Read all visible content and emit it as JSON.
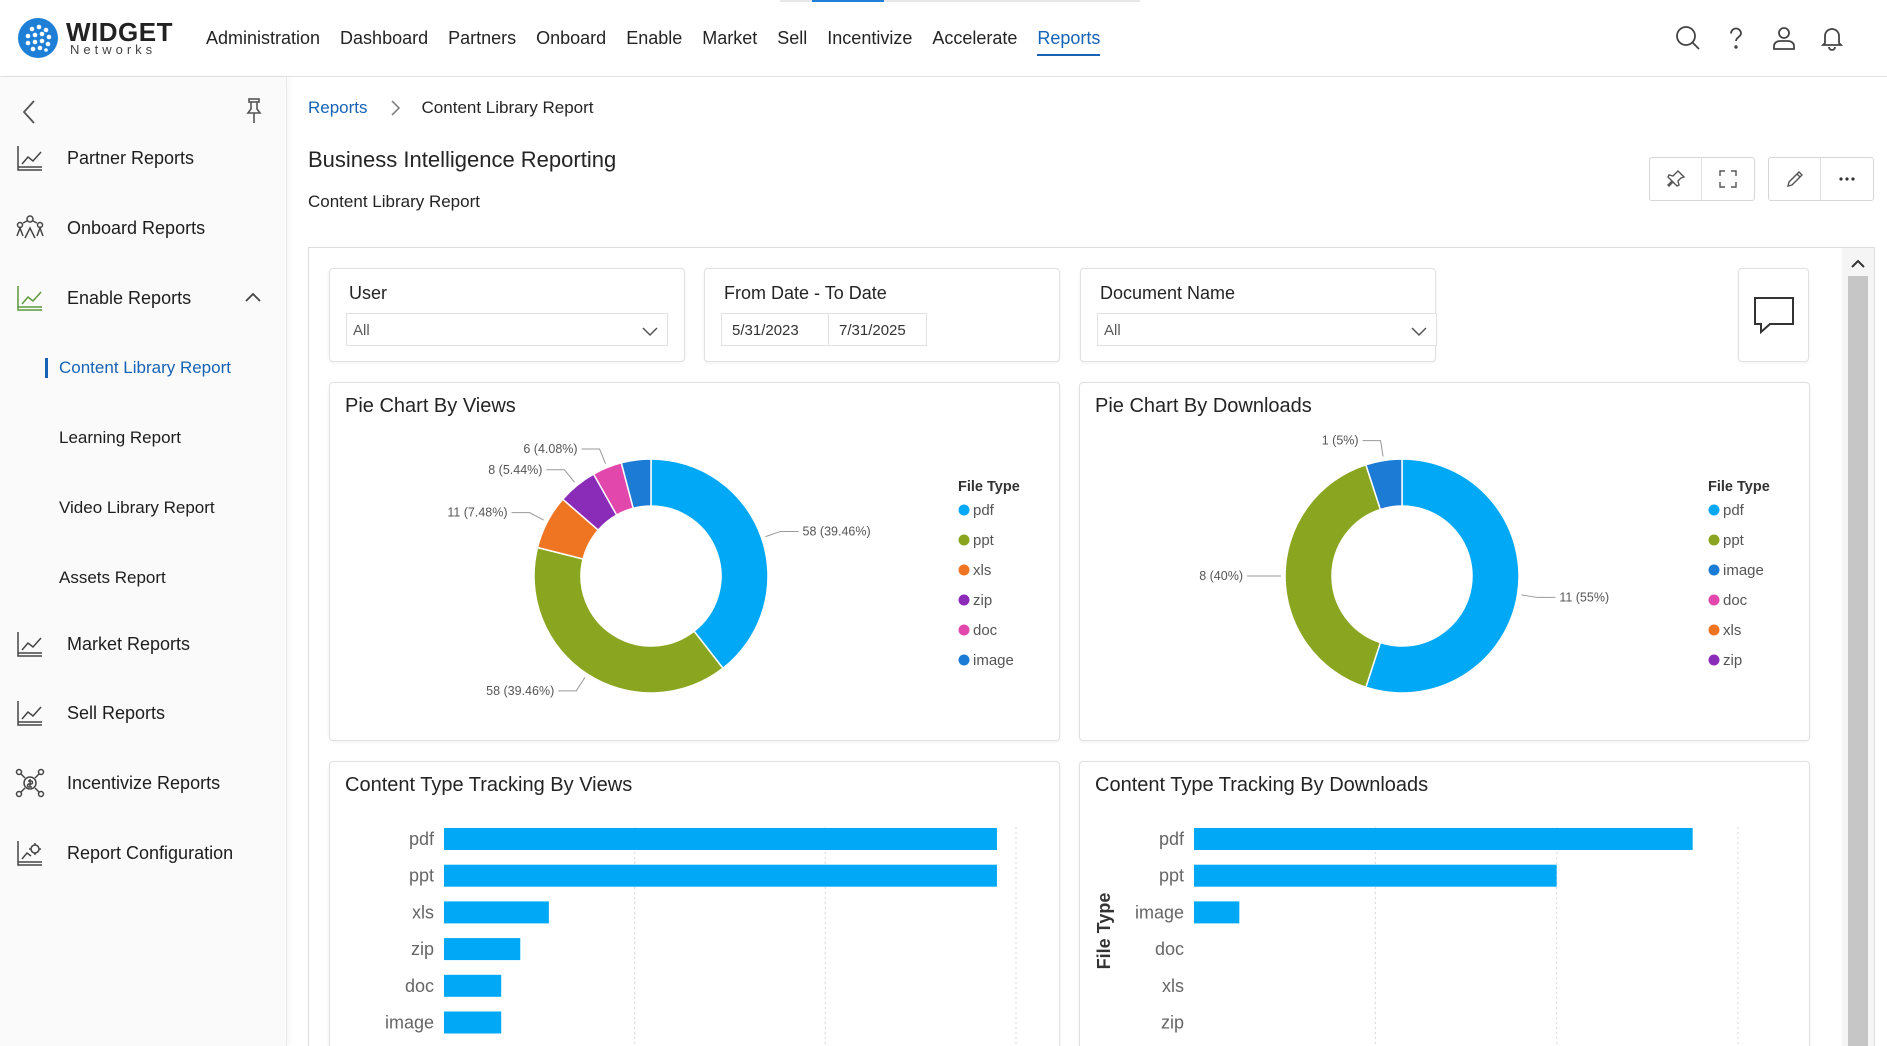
{
  "brand": {
    "title": "WIDGET",
    "subtitle": "Networks"
  },
  "nav": [
    "Administration",
    "Dashboard",
    "Partners",
    "Onboard",
    "Enable",
    "Market",
    "Sell",
    "Incentivize",
    "Accelerate",
    "Reports"
  ],
  "nav_active": "Reports",
  "sidebar": {
    "items": [
      {
        "label": "Partner Reports",
        "icon": "chart-line-icon"
      },
      {
        "label": "Onboard Reports",
        "icon": "people-network-icon"
      },
      {
        "label": "Enable Reports",
        "icon": "chart-line-icon",
        "expanded": true
      },
      {
        "label": "Market Reports",
        "icon": "chart-line-icon"
      },
      {
        "label": "Sell Reports",
        "icon": "chart-line-icon"
      },
      {
        "label": "Incentivize Reports",
        "icon": "money-network-icon"
      },
      {
        "label": "Report Configuration",
        "icon": "chart-gear-icon"
      }
    ],
    "subitems": [
      {
        "label": "Content Library Report",
        "active": true
      },
      {
        "label": "Learning Report"
      },
      {
        "label": "Video Library Report"
      },
      {
        "label": "Assets Report"
      }
    ]
  },
  "breadcrumb": {
    "root": "Reports",
    "current": "Content Library Report"
  },
  "header": {
    "title": "Business Intelligence Reporting",
    "subtitle": "Content Library Report"
  },
  "filters": {
    "user": {
      "label": "User",
      "value": "All"
    },
    "dates": {
      "label": "From Date - To Date",
      "from": "5/31/2023",
      "to": "7/31/2025"
    },
    "document": {
      "label": "Document Name",
      "value": "All"
    }
  },
  "colors": {
    "pdf": "#00a8f5",
    "ppt": "#8aa621",
    "xls": "#f07522",
    "zip": "#8b2cb8",
    "doc": "#e247ac",
    "image": "#1c7bd5",
    "accent": "#1663b6"
  },
  "chart_data": [
    {
      "type": "pie",
      "title": "Pie Chart By Views",
      "legend_title": "File Type",
      "legend": [
        "pdf",
        "ppt",
        "xls",
        "zip",
        "doc",
        "image"
      ],
      "slices": [
        {
          "category": "pdf",
          "value": 58,
          "label": "58 (39.46%)"
        },
        {
          "category": "ppt",
          "value": 58,
          "label": "58 (39.46%)"
        },
        {
          "category": "xls",
          "value": 11,
          "label": "11 (7.48%)"
        },
        {
          "category": "zip",
          "value": 8,
          "label": "8 (5.44%)"
        },
        {
          "category": "doc",
          "value": 6,
          "label": "6 (4.08%)"
        },
        {
          "category": "image",
          "value": 6,
          "label": ""
        }
      ]
    },
    {
      "type": "pie",
      "title": "Pie Chart By Downloads",
      "legend_title": "File Type",
      "legend": [
        "pdf",
        "ppt",
        "image",
        "doc",
        "xls",
        "zip"
      ],
      "slices": [
        {
          "category": "pdf",
          "value": 11,
          "label": "11 (55%)"
        },
        {
          "category": "ppt",
          "value": 8,
          "label": "8 (40%)"
        },
        {
          "category": "image",
          "value": 1,
          "label": "1 (5%)"
        }
      ]
    },
    {
      "type": "bar",
      "orientation": "horizontal",
      "title": "Content Type Tracking By Views",
      "ylabel": "",
      "categories": [
        "pdf",
        "ppt",
        "xls",
        "zip",
        "doc",
        "image"
      ],
      "values": [
        58,
        58,
        11,
        8,
        6,
        6
      ],
      "xlim": [
        0,
        60
      ]
    },
    {
      "type": "bar",
      "orientation": "horizontal",
      "title": "Content Type Tracking By Downloads",
      "ylabel": "File Type",
      "categories": [
        "pdf",
        "ppt",
        "image",
        "doc",
        "xls",
        "zip"
      ],
      "values": [
        11,
        8,
        1,
        0,
        0,
        0
      ],
      "xlim": [
        0,
        12
      ]
    }
  ]
}
